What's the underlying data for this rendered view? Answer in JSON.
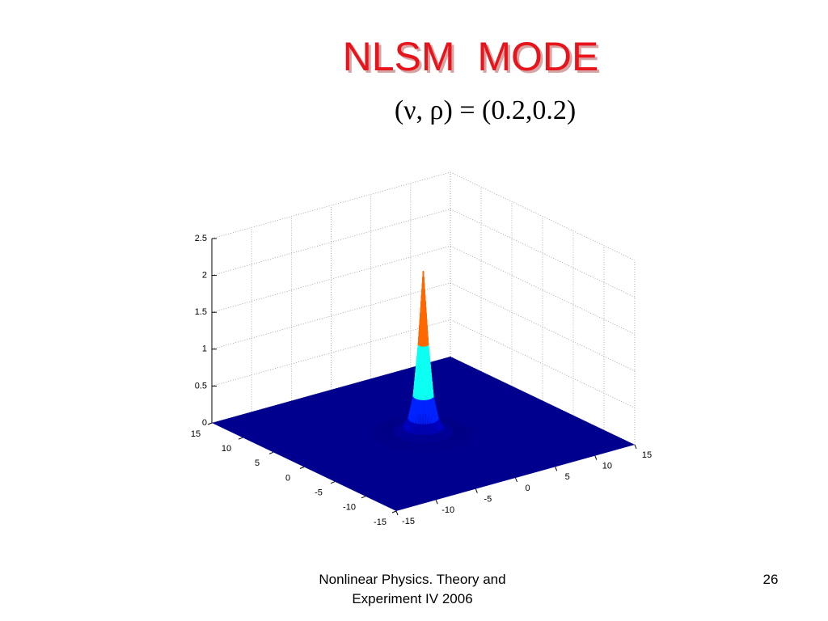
{
  "slide": {
    "title": "NLSM  MODE",
    "subtitle": "(ν, ρ) = (0.2,0.2)",
    "footer": [
      "Nonlinear Physics. Theory and",
      "Experiment IV 2006"
    ],
    "page_number": "26"
  },
  "chart_data": {
    "type": "surface",
    "x": [
      -5,
      -3,
      -2,
      -1.5,
      -1,
      -0.5,
      0,
      0.5,
      1,
      1.5,
      2,
      3,
      5
    ],
    "values": [
      0,
      0.02,
      0.08,
      0.2,
      0.5,
      1.2,
      2.2,
      1.2,
      0.5,
      0.2,
      0.08,
      0.02,
      0
    ],
    "xlim": [
      -15,
      15
    ],
    "ylim": [
      -15,
      15
    ],
    "zlim": [
      0,
      2.5
    ],
    "xticks": [
      -15,
      -10,
      -5,
      0,
      5,
      10,
      15
    ],
    "yticks": [
      -15,
      -10,
      -5,
      0,
      5,
      10,
      15
    ],
    "zticks": [
      0,
      0.5,
      1,
      1.5,
      2,
      2.5
    ],
    "grid": true,
    "floor_color": "#00008f"
  }
}
